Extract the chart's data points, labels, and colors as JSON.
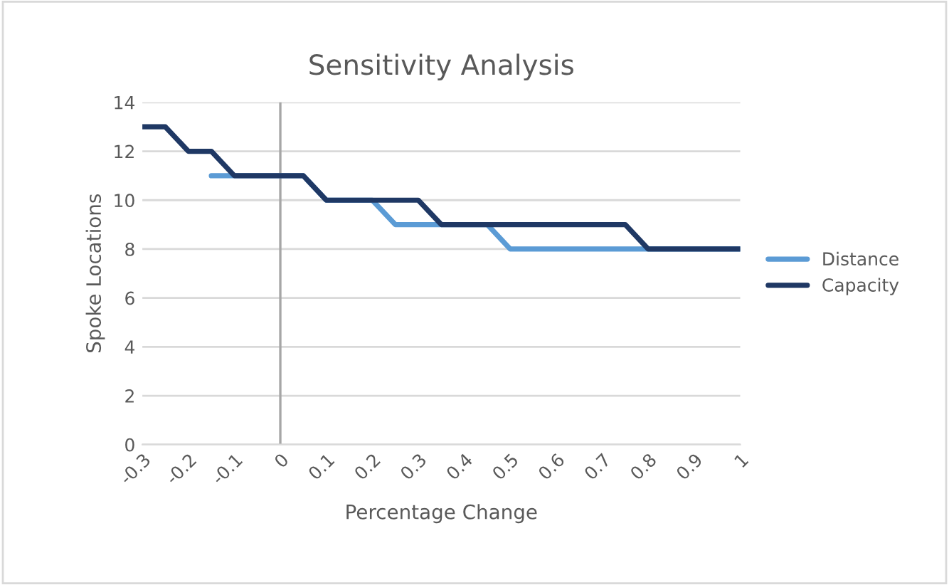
{
  "chart_data": {
    "type": "line",
    "title": "Sensitivity Analysis",
    "xlabel": "Percentage Change",
    "ylabel": "Spoke Locations",
    "series": [
      {
        "name": "Distance",
        "color": "#5b9bd5",
        "x": [
          -0.15,
          -0.1,
          -0.05,
          0,
          0.05,
          0.1,
          0.15,
          0.2,
          0.25,
          0.3,
          0.35,
          0.4,
          0.45,
          0.5,
          0.55,
          0.6,
          0.65,
          0.7,
          0.75,
          0.8,
          0.85,
          0.9,
          0.95,
          1
        ],
        "values": [
          11,
          11,
          11,
          11,
          11,
          10,
          10,
          10,
          9,
          9,
          9,
          9,
          9,
          8,
          8,
          8,
          8,
          8,
          8,
          8,
          8,
          8,
          8,
          8
        ]
      },
      {
        "name": "Capacity",
        "color": "#1f3864",
        "x": [
          -0.3,
          -0.25,
          -0.2,
          -0.15,
          -0.1,
          -0.05,
          0,
          0.05,
          0.1,
          0.15,
          0.2,
          0.25,
          0.3,
          0.35,
          0.4,
          0.45,
          0.5,
          0.55,
          0.6,
          0.65,
          0.7,
          0.75,
          0.8,
          0.85,
          0.9,
          0.95,
          1
        ],
        "values": [
          13,
          13,
          12,
          12,
          11,
          11,
          11,
          11,
          10,
          10,
          10,
          10,
          10,
          9,
          9,
          9,
          9,
          9,
          9,
          9,
          9,
          9,
          8,
          8,
          8,
          8,
          8
        ]
      }
    ],
    "xlim": [
      -0.3,
      1
    ],
    "xticks": [
      -0.3,
      -0.2,
      -0.1,
      0,
      0.1,
      0.2,
      0.3,
      0.4,
      0.5,
      0.6,
      0.7,
      0.8,
      0.9,
      1
    ],
    "ylim": [
      0,
      14
    ],
    "yticks": [
      0,
      2,
      4,
      6,
      8,
      10,
      12,
      14
    ],
    "ref_lines": [
      {
        "axis": "x",
        "value": 0,
        "color": "#a6a6a6"
      }
    ],
    "grid": "y",
    "legend": "right",
    "marker": "none",
    "line_style": "solid"
  }
}
